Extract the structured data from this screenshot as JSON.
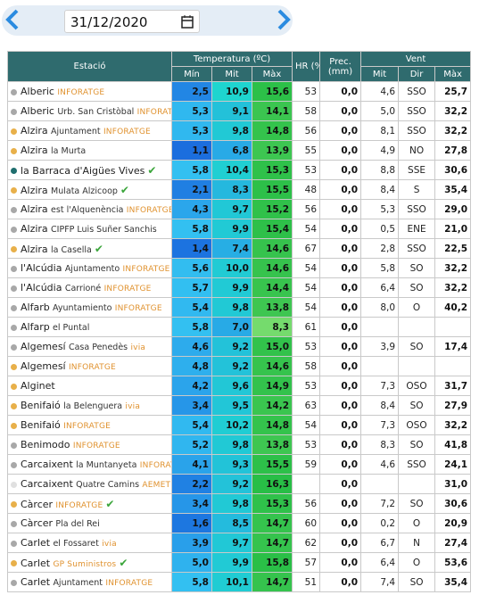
{
  "date": "31/12/2020",
  "table": {
    "headers": {
      "station": "Estació",
      "temperature": "Temperatura (ºC)",
      "humidity": "HR (%)",
      "precipitation": "Prec. (mm)",
      "wind": "Vent",
      "sub": [
        "Mín",
        "Mit",
        "Màx",
        "Mit",
        "Dir",
        "Màx"
      ]
    },
    "rows": [
      {
        "name": "Alberic",
        "source": "INFORATGE",
        "dot": "#a8a8a8",
        "cells": [
          "2,5",
          "10,9",
          "15,6",
          "53",
          "0,0",
          "4,6",
          "SSO",
          "25,7"
        ]
      },
      {
        "name": "Alberic",
        "detail": "Urb. San Cristòbal",
        "source": "INFORATGE",
        "dot": "#a8a8a8",
        "cells": [
          "5,3",
          "9,1",
          "14,1",
          "58",
          "0,0",
          "5,0",
          "SSO",
          "32,2"
        ]
      },
      {
        "name": "Alzira",
        "detail": "Ajuntament",
        "source": "INFORATGE",
        "dot": "#e8b04a",
        "cells": [
          "5,3",
          "9,8",
          "14,8",
          "56",
          "0,0",
          "8,1",
          "SSO",
          "32,2"
        ]
      },
      {
        "name": "Alzira",
        "detail": "la Murta",
        "dot": "#e8b04a",
        "cells": [
          "1,1",
          "6,8",
          "13,9",
          "55",
          "0,0",
          "4,9",
          "NO",
          "27,8"
        ]
      },
      {
        "name": "la Barraca d'Aigües Vives",
        "verified": true,
        "dot": "#1f6e6e",
        "cells": [
          "5,8",
          "10,4",
          "15,3",
          "53",
          "0,0",
          "8,8",
          "SSE",
          "30,6"
        ]
      },
      {
        "name": "Alzira",
        "detail": "Mulata Alzicoop",
        "verified": true,
        "dot": "#e8b04a",
        "cells": [
          "2,1",
          "8,3",
          "15,5",
          "48",
          "0,0",
          "8,4",
          "S",
          "35,4"
        ]
      },
      {
        "name": "Alzira",
        "detail": "est l'Alquenència",
        "source": "INFORATGE",
        "dot": "#a8a8a8",
        "cells": [
          "4,3",
          "9,7",
          "15,2",
          "56",
          "0,0",
          "5,3",
          "SSO",
          "29,0"
        ]
      },
      {
        "name": "Alzira",
        "detail": "CIPFP Luis Suñer Sanchis",
        "dot": "#a8a8a8",
        "cells": [
          "5,8",
          "9,9",
          "15,4",
          "54",
          "0,0",
          "0,5",
          "ENE",
          "21,0"
        ]
      },
      {
        "name": "Alzira",
        "detail": "la Casella",
        "verified": true,
        "dot": "#e8b04a",
        "cells": [
          "1,4",
          "7,4",
          "14,6",
          "67",
          "0,0",
          "2,8",
          "SSO",
          "22,5"
        ]
      },
      {
        "name": "l'Alcúdia",
        "detail": "Ajuntamento",
        "source": "INFORATGE",
        "dot": "#a8a8a8",
        "cells": [
          "5,6",
          "10,0",
          "14,6",
          "54",
          "0,0",
          "5,8",
          "SO",
          "32,2"
        ]
      },
      {
        "name": "l'Alcúdia",
        "detail": "Carrioné",
        "source": "INFORATGE",
        "dot": "#a8a8a8",
        "cells": [
          "5,7",
          "9,9",
          "14,4",
          "54",
          "0,0",
          "6,4",
          "SO",
          "32,2"
        ]
      },
      {
        "name": "Alfarb",
        "detail": "Ayuntamiento",
        "source": "INFORATGE",
        "dot": "#a8a8a8",
        "cells": [
          "5,4",
          "9,8",
          "13,8",
          "54",
          "0,0",
          "8,0",
          "O",
          "40,2"
        ]
      },
      {
        "name": "Alfarp",
        "detail": "el Puntal",
        "dot": "#a8a8a8",
        "cells": [
          "5,8",
          "7,0",
          "8,3",
          "61",
          "0,0",
          null,
          null,
          null
        ]
      },
      {
        "name": "Algemesí",
        "detail": "Casa Penedès",
        "source": "ivia",
        "dot": "#a8a8a8",
        "cells": [
          "4,6",
          "9,2",
          "15,0",
          "53",
          "0,0",
          "3,9",
          "SO",
          "17,4"
        ]
      },
      {
        "name": "Algemesí",
        "source": "INFORATGE",
        "dot": "#e8b04a",
        "cells": [
          "4,8",
          "9,2",
          "14,6",
          "58",
          "0,0",
          null,
          null,
          null
        ]
      },
      {
        "name": "Alginet",
        "dot": "#e8b04a",
        "cells": [
          "4,2",
          "9,6",
          "14,9",
          "53",
          "0,0",
          "7,3",
          "OSO",
          "31,7"
        ]
      },
      {
        "name": "Benifaió",
        "detail": "la Belenguera",
        "source": "ivia",
        "dot": "#e8b04a",
        "cells": [
          "3,4",
          "9,5",
          "14,2",
          "63",
          "0,0",
          "8,4",
          "SO",
          "27,9"
        ]
      },
      {
        "name": "Benifaió",
        "source": "INFORATGE",
        "dot": "#e8b04a",
        "cells": [
          "5,4",
          "10,2",
          "14,8",
          "54",
          "0,0",
          "7,3",
          "OSO",
          "32,2"
        ]
      },
      {
        "name": "Benimodo",
        "source": "INFORATGE",
        "dot": "#a8a8a8",
        "cells": [
          "5,2",
          "9,8",
          "13,8",
          "53",
          "0,0",
          "8,3",
          "SO",
          "41,8"
        ]
      },
      {
        "name": "Carcaixent",
        "detail": "la Muntanyeta",
        "source": "INFORATGE",
        "dot": "#a8a8a8",
        "cells": [
          "4,1",
          "9,3",
          "15,5",
          "59",
          "0,0",
          "4,6",
          "SSO",
          "24,1"
        ]
      },
      {
        "name": "Carcaixent",
        "detail": "Quatre Camins",
        "source": "AEMET",
        "dot": "#e0e0e0",
        "cells": [
          "2,2",
          "9,2",
          "16,3",
          null,
          "0,0",
          null,
          null,
          "31,0"
        ]
      },
      {
        "name": "Càrcer",
        "source": "INFORATGE",
        "verified": true,
        "dot": "#e8b04a",
        "cells": [
          "3,4",
          "9,8",
          "15,3",
          "56",
          "0,0",
          "7,2",
          "SO",
          "30,6"
        ]
      },
      {
        "name": "Càrcer",
        "detail": "Pla del Rei",
        "dot": "#a8a8a8",
        "cells": [
          "1,6",
          "8,5",
          "14,7",
          "60",
          "0,0",
          "0,2",
          "O",
          "20,9"
        ]
      },
      {
        "name": "Carlet",
        "detail": "el Fossaret",
        "source": "ivia",
        "dot": "#a8a8a8",
        "cells": [
          "3,9",
          "9,7",
          "14,7",
          "62",
          "0,0",
          "6,7",
          "N",
          "27,4"
        ]
      },
      {
        "name": "Carlet",
        "source": "GP Suministros",
        "verified": true,
        "dot": "#e8b04a",
        "cells": [
          "5,0",
          "9,9",
          "15,8",
          "57",
          "0,0",
          "6,4",
          "O",
          "53,6"
        ]
      },
      {
        "name": "Carlet",
        "detail": "Ajuntament",
        "source": "INFORATGE",
        "dot": "#a8a8a8",
        "cells": [
          "5,8",
          "10,1",
          "14,7",
          "51",
          "0,0",
          "7,4",
          "SO",
          "35,4"
        ]
      }
    ]
  }
}
